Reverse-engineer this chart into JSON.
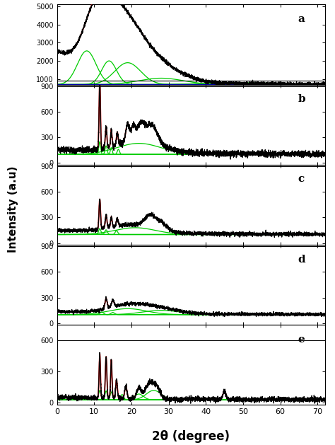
{
  "xlim": [
    0,
    72
  ],
  "xlabel": "2θ (degree)",
  "ylabel": "Intensity (a.u)",
  "panel_labels": [
    "a",
    "b",
    "c",
    "d",
    "e"
  ],
  "colors": {
    "black": "#000000",
    "red": "#cc0000",
    "green": "#00cc00",
    "blue": "#0000bb"
  },
  "panel_a_ylim": [
    700,
    5100
  ],
  "panel_a_yticks": [
    1000,
    2000,
    3000,
    4000,
    5000
  ],
  "panel_bcde_ylim": [
    -20,
    920
  ],
  "panel_bcde_yticks": [
    0,
    300,
    600,
    900
  ]
}
